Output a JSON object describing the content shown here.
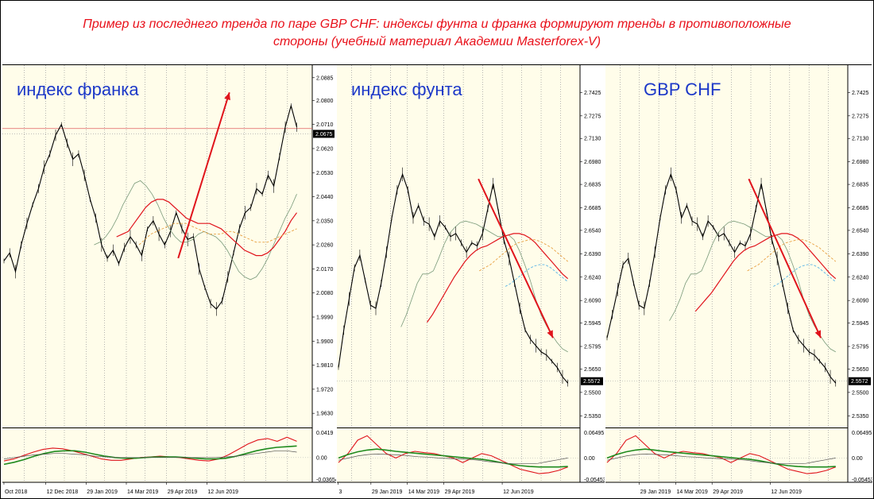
{
  "caption": "Пример из последнего тренда по паре GBP CHF: индексы фунта и франка формируют тренды в противоположные стороны (учебный материал Академии Masterforex-V)",
  "colors": {
    "background": "#fffdea",
    "caption_text": "#e8101a",
    "label_text": "#1c38c8",
    "price": "#000000",
    "ma_fast": "#7a9a7a",
    "ma_mid": "#e0141c",
    "ma_slow_a": "#e8a040",
    "ma_slow_b": "#5ab4e6",
    "trend_arrow": "#e0141c",
    "osc_fast": "#e0141c",
    "osc_slow": "#1e8a1e",
    "osc_signal": "#555555"
  },
  "chart_data": [
    {
      "type": "line",
      "title": "индекс франка",
      "trend": "up",
      "yticks": [
        "2.0885",
        "2.0800",
        "2.0710",
        "2.0620",
        "2.0530",
        "2.0440",
        "2.0350",
        "2.0260",
        "2.0170",
        "2.0080",
        "1.9990",
        "1.9900",
        "1.9810",
        "1.9720",
        "1.9630"
      ],
      "ylim": [
        1.958,
        2.092
      ],
      "current_price": "2.0675",
      "current_value": 2.0675,
      "reference_value": 2.0695,
      "xticks": [
        "Oct 2018",
        "12 Dec 2018",
        "29 Jan 2019",
        "14 Mar 2019",
        "29 Apr 2019",
        "12 Jun 2019"
      ],
      "series": [
        {
          "values": [
            2.02,
            2.023,
            2.016,
            2.026,
            2.034,
            2.041,
            2.047,
            2.055,
            2.06,
            2.067,
            2.071,
            2.064,
            2.058,
            2.06,
            2.052,
            2.043,
            2.036,
            2.026,
            2.021,
            2.024,
            2.019,
            2.025,
            2.029,
            2.026,
            2.022,
            2.032,
            2.035,
            2.03,
            2.026,
            2.031,
            2.038,
            2.032,
            2.028,
            2.029,
            2.017,
            2.01,
            2.004,
            2.002,
            2.005,
            2.014,
            2.023,
            2.032,
            2.038,
            2.04,
            2.047,
            2.045,
            2.052,
            2.048,
            2.059,
            2.07,
            2.078,
            2.07
          ]
        },
        {
          "values": [
            2.026,
            2.027,
            2.029,
            2.032,
            2.036,
            2.041,
            2.045,
            2.049,
            2.05,
            2.048,
            2.045,
            2.041,
            2.036,
            2.032,
            2.029,
            2.027,
            2.027,
            2.028,
            2.03,
            2.031,
            2.03,
            2.029,
            2.027,
            2.024,
            2.02,
            2.016,
            2.014,
            2.013,
            2.014,
            2.017,
            2.021,
            2.026,
            2.031,
            2.036,
            2.04,
            2.045
          ]
        },
        {
          "values": [
            2.029,
            2.03,
            2.031,
            2.034,
            2.037,
            2.04,
            2.042,
            2.043,
            2.043,
            2.042,
            2.04,
            2.038,
            2.036,
            2.035,
            2.034,
            2.034,
            2.034,
            2.033,
            2.032,
            2.03,
            2.028,
            2.026,
            2.024,
            2.023,
            2.022,
            2.022,
            2.023,
            2.025,
            2.028,
            2.031,
            2.035,
            2.038
          ]
        },
        {
          "values": [
            2.026,
            2.028,
            2.03,
            2.031,
            2.032,
            2.033,
            2.034,
            2.034,
            2.034,
            2.033,
            2.032,
            2.031,
            2.03,
            2.03,
            2.03,
            2.031,
            2.031,
            2.03,
            2.029,
            2.028,
            2.027,
            2.027,
            2.027,
            2.028,
            2.029,
            2.03,
            2.031,
            2.032
          ]
        }
      ],
      "trend_line": {
        "from": [
          0.595,
          2.021
        ],
        "to": [
          0.77,
          2.083
        ]
      },
      "osc_yticks": [
        "0.0419",
        "0.00",
        "-0.03654"
      ],
      "osc_ylim": [
        -0.0365,
        0.042
      ],
      "osc_series": [
        {
          "values": [
            -0.005,
            -0.002,
            0.003,
            0.008,
            0.012,
            0.014,
            0.013,
            0.01,
            0.006,
            0.002,
            -0.002,
            -0.004,
            -0.004,
            -0.002,
            0.0,
            0.001,
            0.002,
            0.001,
            0.0,
            -0.002,
            -0.004,
            -0.005,
            -0.002,
            0.004,
            0.012,
            0.02,
            0.026,
            0.028,
            0.024,
            0.03,
            0.024
          ]
        },
        {
          "values": [
            -0.01,
            -0.007,
            -0.003,
            0.002,
            0.006,
            0.009,
            0.01,
            0.01,
            0.008,
            0.005,
            0.002,
            0.0,
            -0.001,
            -0.001,
            0.0,
            0.001,
            0.001,
            0.001,
            0.0,
            -0.001,
            -0.002,
            -0.002,
            -0.001,
            0.002,
            0.006,
            0.01,
            0.013,
            0.015,
            0.016,
            0.017
          ]
        },
        {
          "values": [
            -0.002,
            0.0,
            0.002,
            0.004,
            0.005,
            0.006,
            0.006,
            0.005,
            0.004,
            0.002,
            0.001,
            0.0,
            0.0,
            0.0,
            0.0,
            0.0,
            0.0,
            0.0,
            0.0,
            0.0,
            0.0,
            0.0,
            0.001,
            0.002,
            0.004,
            0.006,
            0.008,
            0.01,
            0.01,
            0.008
          ]
        }
      ]
    },
    {
      "type": "line",
      "title": "индекс фунта",
      "trend": "down",
      "yticks": [
        "2.7425",
        "2.7275",
        "2.7130",
        "2.6980",
        "2.6835",
        "2.6685",
        "2.6540",
        "2.6390",
        "2.6240",
        "2.6090",
        "2.5945",
        "2.5795",
        "2.5650",
        "2.5500",
        "2.5350"
      ],
      "ylim": [
        2.528,
        2.758
      ],
      "current_price": "2.5572",
      "current_value": 2.5572,
      "xticks": [
        "3",
        "29 Jan 2019",
        "14 Mar 2019",
        "29 Apr 2019",
        "12 Jun 2019"
      ],
      "series": [
        {
          "values": [
            2.566,
            2.59,
            2.61,
            2.63,
            2.638,
            2.622,
            2.606,
            2.604,
            2.62,
            2.64,
            2.662,
            2.68,
            2.69,
            2.68,
            2.662,
            2.67,
            2.66,
            2.658,
            2.65,
            2.66,
            2.656,
            2.65,
            2.652,
            2.646,
            2.64,
            2.646,
            2.644,
            2.652,
            2.668,
            2.684,
            2.666,
            2.648,
            2.636,
            2.62,
            2.604,
            2.59,
            2.584,
            2.58,
            2.576,
            2.574,
            2.57,
            2.566,
            2.56,
            2.556
          ]
        },
        {
          "values": [
            2.592,
            2.6,
            2.61,
            2.62,
            2.626,
            2.626,
            2.628,
            2.636,
            2.645,
            2.652,
            2.656,
            2.659,
            2.66,
            2.659,
            2.658,
            2.656,
            2.654,
            2.652,
            2.65,
            2.65,
            2.651,
            2.648,
            2.641,
            2.632,
            2.622,
            2.61,
            2.6,
            2.593,
            2.587,
            2.582,
            2.578,
            2.576
          ]
        },
        {
          "values": [
            2.595,
            2.6,
            2.606,
            2.612,
            2.618,
            2.624,
            2.629,
            2.634,
            2.638,
            2.641,
            2.643,
            2.644,
            2.646,
            2.648,
            2.65,
            2.651,
            2.652,
            2.652,
            2.651,
            2.649,
            2.646,
            2.642,
            2.638,
            2.634,
            2.63,
            2.626,
            2.623
          ]
        },
        {
          "values": [
            2.628,
            2.63,
            2.632,
            2.635,
            2.638,
            2.641,
            2.644,
            2.646,
            2.647,
            2.648,
            2.648,
            2.647,
            2.645,
            2.643,
            2.64,
            2.637,
            2.634
          ]
        },
        {
          "values": [
            2.618,
            2.62,
            2.623,
            2.626,
            2.629,
            2.631,
            2.632,
            2.632,
            2.63,
            2.627,
            2.624,
            2.621
          ]
        }
      ],
      "trend_line": {
        "from": [
          0.61,
          2.687
        ],
        "to": [
          0.935,
          2.585
        ]
      },
      "osc_yticks": [
        "0.06495",
        "0.00",
        "-0.05453"
      ],
      "osc_ylim": [
        -0.0545,
        0.065
      ],
      "osc_series": [
        {
          "values": [
            -0.01,
            0.01,
            0.04,
            0.05,
            0.03,
            0.01,
            0.0,
            0.01,
            0.015,
            0.012,
            0.01,
            0.005,
            0.0,
            -0.01,
            0.0,
            0.01,
            0.005,
            -0.005,
            -0.015,
            -0.025,
            -0.03,
            -0.035,
            -0.033,
            -0.028,
            -0.02
          ]
        },
        {
          "values": [
            0.0,
            0.008,
            0.014,
            0.018,
            0.02,
            0.018,
            0.015,
            0.013,
            0.011,
            0.009,
            0.007,
            0.005,
            0.003,
            0.001,
            -0.001,
            -0.003,
            -0.006,
            -0.01,
            -0.014,
            -0.017,
            -0.019,
            -0.02,
            -0.02,
            -0.02,
            -0.019
          ]
        },
        {
          "values": [
            -0.005,
            0.0,
            0.005,
            0.008,
            0.009,
            0.008,
            0.007,
            0.005,
            0.003,
            0.002,
            0.0,
            -0.001,
            -0.002,
            -0.003,
            -0.005,
            -0.008,
            -0.01,
            -0.012,
            -0.013,
            -0.013,
            -0.012,
            -0.008,
            -0.004,
            0.0
          ]
        }
      ]
    },
    {
      "type": "line",
      "title": "GBP CHF",
      "trend": "down",
      "yticks": [
        "2.7425",
        "2.7275",
        "2.7130",
        "2.6980",
        "2.6835",
        "2.6685",
        "2.6540",
        "2.6390",
        "2.6240",
        "2.6090",
        "2.5945",
        "2.5795",
        "2.5650",
        "2.5500",
        "2.5350"
      ],
      "ylim": [
        2.528,
        2.758
      ],
      "current_price": "2.5572",
      "current_value": 2.5572,
      "xticks": [
        "29 Jan 2019",
        "14 Mar 2019",
        "29 Apr 2019",
        "12 Jun 2019"
      ],
      "series": [
        {
          "values": [
            2.585,
            2.6,
            2.616,
            2.632,
            2.636,
            2.62,
            2.606,
            2.604,
            2.62,
            2.64,
            2.662,
            2.68,
            2.69,
            2.68,
            2.662,
            2.67,
            2.66,
            2.658,
            2.65,
            2.66,
            2.656,
            2.65,
            2.652,
            2.646,
            2.64,
            2.646,
            2.644,
            2.652,
            2.668,
            2.684,
            2.666,
            2.648,
            2.636,
            2.62,
            2.604,
            2.59,
            2.584,
            2.58,
            2.576,
            2.574,
            2.57,
            2.566,
            2.56,
            2.556
          ]
        },
        {
          "values": [
            2.596,
            2.602,
            2.61,
            2.62,
            2.626,
            2.626,
            2.628,
            2.636,
            2.645,
            2.652,
            2.656,
            2.659,
            2.66,
            2.659,
            2.658,
            2.656,
            2.654,
            2.652,
            2.65,
            2.65,
            2.651,
            2.648,
            2.641,
            2.632,
            2.622,
            2.61,
            2.6,
            2.593,
            2.587,
            2.582,
            2.578,
            2.576
          ]
        },
        {
          "values": [
            2.602,
            2.606,
            2.61,
            2.614,
            2.619,
            2.624,
            2.629,
            2.634,
            2.638,
            2.641,
            2.643,
            2.644,
            2.646,
            2.648,
            2.65,
            2.651,
            2.652,
            2.652,
            2.651,
            2.649,
            2.646,
            2.642,
            2.638,
            2.634,
            2.63,
            2.626,
            2.623
          ]
        },
        {
          "values": [
            2.628,
            2.63,
            2.632,
            2.635,
            2.638,
            2.641,
            2.644,
            2.646,
            2.647,
            2.648,
            2.648,
            2.647,
            2.645,
            2.643,
            2.64,
            2.637,
            2.634
          ]
        },
        {
          "values": [
            2.618,
            2.62,
            2.623,
            2.626,
            2.629,
            2.631,
            2.632,
            2.632,
            2.63,
            2.627,
            2.624,
            2.621
          ]
        }
      ],
      "trend_line": {
        "from": [
          0.62,
          2.687
        ],
        "to": [
          0.935,
          2.585
        ]
      },
      "osc_yticks": [
        "0.06495",
        "0.00",
        "-0.05453"
      ],
      "osc_ylim": [
        -0.0545,
        0.065
      ],
      "osc_series": [
        {
          "values": [
            -0.01,
            0.01,
            0.04,
            0.05,
            0.03,
            0.01,
            0.0,
            0.01,
            0.015,
            0.012,
            0.01,
            0.005,
            0.0,
            -0.01,
            0.0,
            0.01,
            0.005,
            -0.005,
            -0.015,
            -0.025,
            -0.03,
            -0.035,
            -0.033,
            -0.028,
            -0.02
          ]
        },
        {
          "values": [
            0.0,
            0.008,
            0.014,
            0.018,
            0.02,
            0.018,
            0.015,
            0.013,
            0.011,
            0.009,
            0.007,
            0.005,
            0.003,
            0.001,
            -0.001,
            -0.003,
            -0.006,
            -0.01,
            -0.014,
            -0.017,
            -0.019,
            -0.02,
            -0.02,
            -0.02,
            -0.019
          ]
        },
        {
          "values": [
            -0.005,
            0.0,
            0.005,
            0.008,
            0.009,
            0.008,
            0.007,
            0.005,
            0.003,
            0.002,
            0.0,
            -0.001,
            -0.002,
            -0.003,
            -0.005,
            -0.008,
            -0.01,
            -0.012,
            -0.013,
            -0.013,
            -0.012,
            -0.008,
            -0.004,
            0.0
          ]
        }
      ]
    }
  ]
}
